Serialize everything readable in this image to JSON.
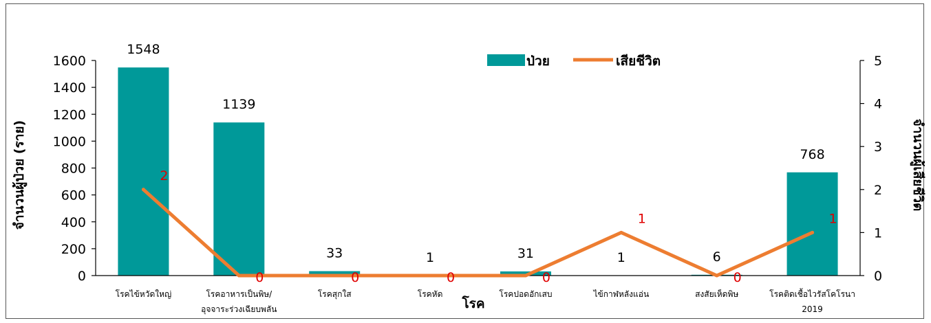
{
  "chart_data": {
    "type": "bar",
    "title": "",
    "xlabel": "โรค",
    "ylabel": "จำนวนผู้ป่วย (ราย)",
    "y2label": "จำนวนผู้เสียชีวิต",
    "ylim": [
      0,
      1600
    ],
    "y2lim": [
      0,
      5
    ],
    "yticks": [
      0,
      200,
      400,
      600,
      800,
      1000,
      1200,
      1400,
      1600
    ],
    "y2ticks": [
      0,
      1,
      2,
      3,
      4,
      5
    ],
    "categories": [
      [
        "โรคไข้หวัดใหญ่"
      ],
      [
        "โรคอาหารเป็นพิษ/",
        "อุจจาระร่วงเฉียบพลัน"
      ],
      [
        "โรคสุกใส"
      ],
      [
        "โรคหัด"
      ],
      [
        "โรคปอดอักเสบ"
      ],
      [
        "ไข้กาฬหลังแอ่น"
      ],
      [
        "สงสัยเห็ดพิษ"
      ],
      [
        "โรคติดเชื้อไวรัสโคโรนา",
        "2019"
      ]
    ],
    "series": [
      {
        "name": "ป่วย",
        "type": "bar",
        "axis": "left",
        "values": [
          1548,
          1139,
          33,
          1,
          31,
          1,
          6,
          768
        ]
      },
      {
        "name": "เสียชีวิต",
        "type": "line",
        "axis": "right",
        "values": [
          2,
          0,
          0,
          0,
          0,
          1,
          0,
          1
        ]
      }
    ],
    "colors": {
      "bar": "#009999",
      "line": "#ED7D31",
      "death_label": "#E00000"
    },
    "legend": "top-center",
    "grid": false
  }
}
